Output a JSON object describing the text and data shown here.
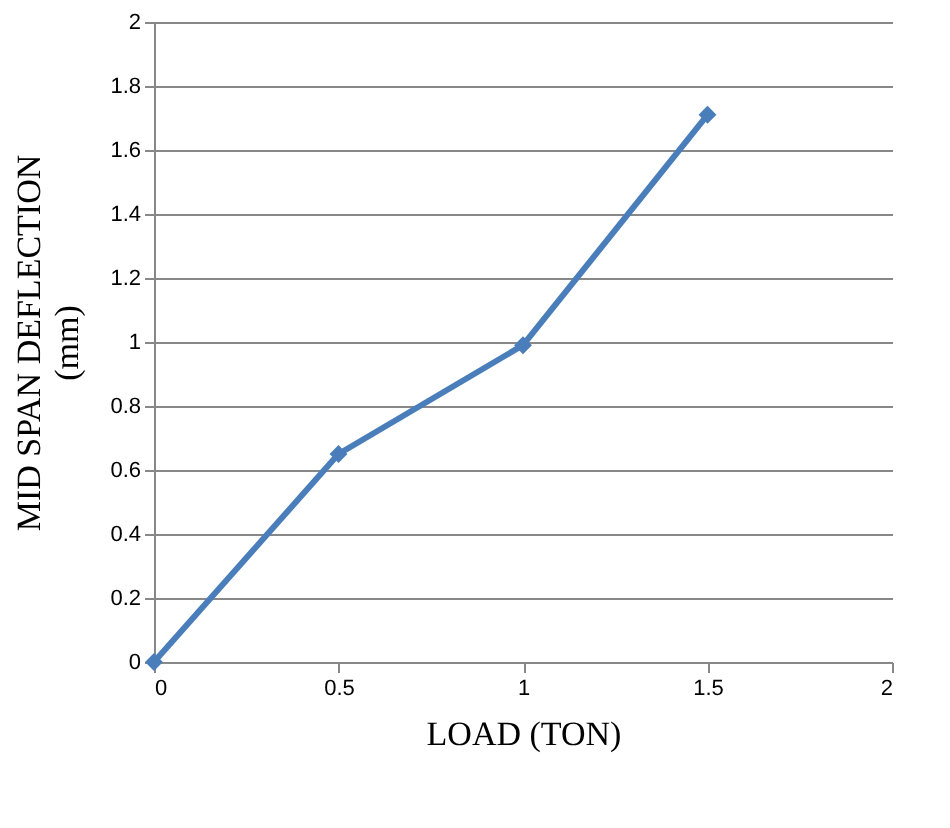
{
  "chart_data": {
    "type": "line",
    "xlabel": "LOAD  (TON)",
    "ylabel": "MID SPAN DEFLECTION (mm)",
    "x": [
      0,
      0.5,
      1,
      1.5
    ],
    "series": [
      {
        "color": "#4a7ebb",
        "values": [
          0,
          0.65,
          0.99,
          1.71
        ]
      }
    ],
    "xlim": [
      0,
      2
    ],
    "xticks": [
      0,
      0.5,
      1,
      1.5,
      2
    ],
    "ylim": [
      0,
      2
    ],
    "yticks": [
      0,
      0.2,
      0.4,
      0.6,
      0.8,
      1,
      1.2,
      1.4,
      1.6,
      1.8,
      2
    ],
    "grid": "y",
    "marker": "diamond",
    "line_style": "solid"
  }
}
